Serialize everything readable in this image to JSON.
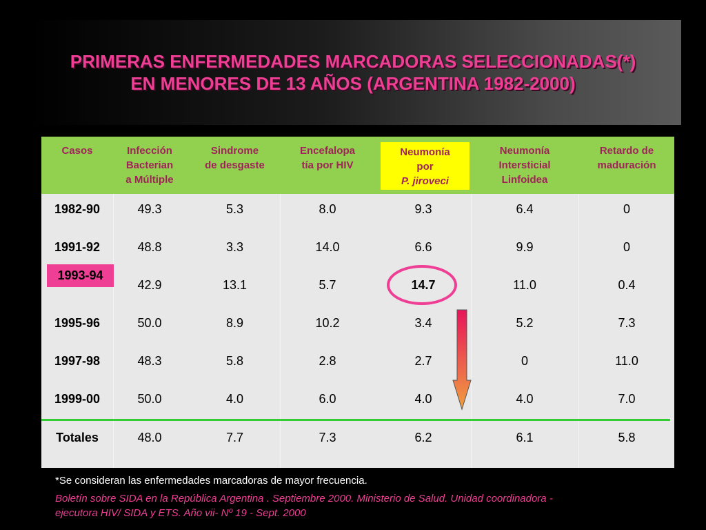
{
  "title": {
    "line1": "PRIMERAS ENFERMEDADES MARCADORAS SELECCIONADAS(*)",
    "line2": "EN MENORES DE 13 AÑOS (ARGENTINA 1982-2000)"
  },
  "headers": [
    [
      "Casos"
    ],
    [
      "Infección",
      "Bacterian",
      "a Múltiple"
    ],
    [
      "Sindrome",
      "de desgaste"
    ],
    [
      "Encefalopa",
      "tía por HIV"
    ],
    [
      "Neumonía",
      "por",
      "P. jiroveci"
    ],
    [
      "Neumonía",
      "Intersticial",
      "Linfoidea"
    ],
    [
      "Retardo de",
      "maduración"
    ]
  ],
  "rows": [
    [
      "1982-90",
      "49.3",
      "5.3",
      "8.0",
      "9.3",
      "6.4",
      "0"
    ],
    [
      "1991-92",
      "48.8",
      "3.3",
      "14.0",
      "6.6",
      "9.9",
      "0"
    ],
    [
      "1993-94",
      "42.9",
      "13.1",
      "5.7",
      "14.7",
      "11.0",
      "0.4"
    ],
    [
      "1995-96",
      "50.0",
      "8.9",
      "10.2",
      "3.4",
      "5.2",
      "7.3"
    ],
    [
      "1997-98",
      "48.3",
      "5.8",
      "2.8",
      "2.7",
      "0",
      "11.0"
    ],
    [
      "1999-00",
      "50.0",
      "4.0",
      "6.0",
      "4.0",
      "4.0",
      "7.0"
    ]
  ],
  "totals": [
    "Totales",
    "48.0",
    "7.7",
    "7.3",
    "6.2",
    "6.1",
    "5.8"
  ],
  "footnote": "*Se consideran las enfermedades marcadoras de mayor frecuencia.",
  "source": {
    "line1": "Boletín sobre SIDA en la República Argentina . Septiembre 2000. Ministerio de Salud. Unidad coordinadora -",
    "line2": "ejecutora HIV/ SIDA y ETS.  Año vii- Nº 19 - Sept. 2000"
  },
  "colors": {
    "title": "#ee3f95",
    "header_bg": "#92d050",
    "header_text": "#a0245a",
    "highlight_yellow": "#ffff00",
    "highlight_pink": "#ee3f95",
    "table_bg": "#e8e8e8",
    "separator_green": "#33cc33",
    "source_text": "#ee3f95"
  },
  "icons": {
    "circle": "highlight-ellipse",
    "arrow": "down-arrow"
  }
}
